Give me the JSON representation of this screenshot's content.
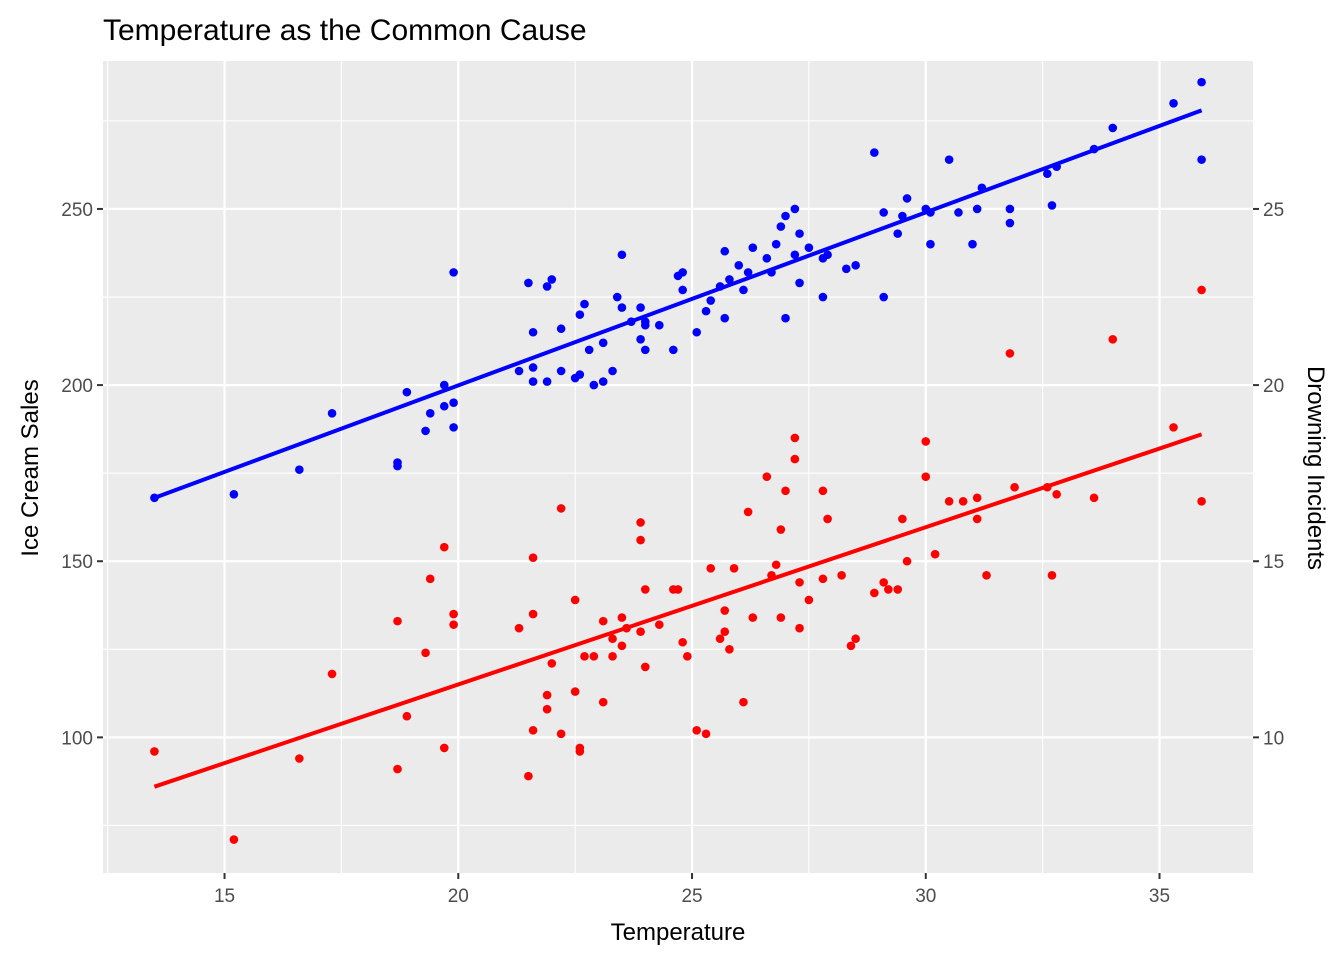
{
  "chart_data": {
    "type": "scatter",
    "title": "Temperature as the Common Cause",
    "xlabel": "Temperature",
    "ylabel": "Ice Cream Sales",
    "y2label": "Drowning Incidents",
    "xlim": [
      12.4,
      37.0
    ],
    "ylim": [
      61.5,
      292
    ],
    "y2lim": [
      6.15,
      29.2
    ],
    "xticks": [
      15,
      20,
      25,
      30,
      35
    ],
    "yticks": [
      100,
      150,
      200,
      250
    ],
    "y2ticks": [
      10,
      15,
      20,
      25
    ],
    "grid": true,
    "panel_background": "#ebebeb",
    "series": [
      {
        "name": "Ice Cream Sales",
        "axis": "left",
        "color": "#0000ff",
        "trend": {
          "x": [
            13.5,
            35.9
          ],
          "y": [
            168,
            278
          ]
        },
        "points": [
          [
            13.5,
            168
          ],
          [
            15.2,
            169
          ],
          [
            16.6,
            176
          ],
          [
            17.3,
            192
          ],
          [
            18.7,
            177
          ],
          [
            18.7,
            178
          ],
          [
            18.9,
            198
          ],
          [
            19.3,
            187
          ],
          [
            19.4,
            192
          ],
          [
            19.7,
            194
          ],
          [
            19.7,
            200
          ],
          [
            19.9,
            188
          ],
          [
            19.9,
            195
          ],
          [
            19.9,
            232
          ],
          [
            21.3,
            204
          ],
          [
            21.5,
            229
          ],
          [
            21.6,
            215
          ],
          [
            21.6,
            205
          ],
          [
            21.6,
            201
          ],
          [
            21.9,
            201
          ],
          [
            21.9,
            228
          ],
          [
            22.0,
            230
          ],
          [
            22.2,
            204
          ],
          [
            22.2,
            216
          ],
          [
            22.5,
            202
          ],
          [
            22.6,
            203
          ],
          [
            22.6,
            220
          ],
          [
            22.7,
            223
          ],
          [
            22.8,
            210
          ],
          [
            22.9,
            200
          ],
          [
            23.1,
            201
          ],
          [
            23.1,
            212
          ],
          [
            23.3,
            204
          ],
          [
            23.4,
            225
          ],
          [
            23.5,
            237
          ],
          [
            23.5,
            222
          ],
          [
            23.7,
            218
          ],
          [
            23.9,
            213
          ],
          [
            23.9,
            222
          ],
          [
            24.0,
            218
          ],
          [
            24.0,
            210
          ],
          [
            24.0,
            217
          ],
          [
            24.3,
            217
          ],
          [
            24.6,
            210
          ],
          [
            24.7,
            231
          ],
          [
            24.8,
            232
          ],
          [
            24.8,
            227
          ],
          [
            25.1,
            215
          ],
          [
            25.3,
            221
          ],
          [
            25.4,
            224
          ],
          [
            25.6,
            228
          ],
          [
            25.7,
            238
          ],
          [
            25.7,
            219
          ],
          [
            25.8,
            230
          ],
          [
            26.0,
            234
          ],
          [
            26.1,
            227
          ],
          [
            26.2,
            232
          ],
          [
            26.3,
            239
          ],
          [
            26.6,
            236
          ],
          [
            26.7,
            232
          ],
          [
            26.8,
            240
          ],
          [
            26.9,
            245
          ],
          [
            27.0,
            219
          ],
          [
            27.0,
            248
          ],
          [
            27.2,
            250
          ],
          [
            27.2,
            237
          ],
          [
            27.3,
            243
          ],
          [
            27.3,
            229
          ],
          [
            27.5,
            239
          ],
          [
            27.8,
            236
          ],
          [
            27.8,
            225
          ],
          [
            27.9,
            237
          ],
          [
            28.3,
            233
          ],
          [
            28.5,
            234
          ],
          [
            28.9,
            266
          ],
          [
            29.1,
            225
          ],
          [
            29.1,
            249
          ],
          [
            29.4,
            243
          ],
          [
            29.5,
            248
          ],
          [
            29.6,
            253
          ],
          [
            30.0,
            250
          ],
          [
            30.1,
            249
          ],
          [
            30.1,
            240
          ],
          [
            30.5,
            264
          ],
          [
            30.7,
            249
          ],
          [
            31.0,
            240
          ],
          [
            31.1,
            250
          ],
          [
            31.2,
            256
          ],
          [
            31.8,
            246
          ],
          [
            31.8,
            250
          ],
          [
            32.6,
            260
          ],
          [
            32.7,
            251
          ],
          [
            32.8,
            262
          ],
          [
            33.6,
            267
          ],
          [
            34.0,
            273
          ],
          [
            35.3,
            280
          ],
          [
            35.9,
            264
          ],
          [
            35.9,
            286
          ]
        ]
      },
      {
        "name": "Drowning Incidents",
        "axis": "right",
        "color": "#ff0000",
        "trend": {
          "x": [
            13.5,
            35.9
          ],
          "y": [
            8.6,
            18.6
          ]
        },
        "points": [
          [
            13.5,
            9.6
          ],
          [
            15.2,
            7.1
          ],
          [
            16.6,
            9.4
          ],
          [
            17.3,
            11.8
          ],
          [
            18.7,
            13.3
          ],
          [
            18.7,
            9.1
          ],
          [
            18.9,
            10.6
          ],
          [
            19.3,
            12.4
          ],
          [
            19.4,
            14.5
          ],
          [
            19.7,
            15.4
          ],
          [
            19.7,
            9.7
          ],
          [
            19.9,
            13.2
          ],
          [
            19.9,
            13.5
          ],
          [
            21.3,
            13.1
          ],
          [
            21.5,
            8.9
          ],
          [
            21.6,
            10.2
          ],
          [
            21.6,
            13.5
          ],
          [
            21.6,
            15.1
          ],
          [
            21.9,
            10.8
          ],
          [
            21.9,
            11.2
          ],
          [
            22.0,
            12.1
          ],
          [
            22.2,
            16.5
          ],
          [
            22.2,
            10.1
          ],
          [
            22.5,
            11.3
          ],
          [
            22.5,
            13.9
          ],
          [
            22.6,
            9.7
          ],
          [
            22.6,
            9.6
          ],
          [
            22.7,
            12.3
          ],
          [
            22.9,
            12.3
          ],
          [
            23.1,
            13.3
          ],
          [
            23.1,
            11.0
          ],
          [
            23.3,
            12.8
          ],
          [
            23.3,
            12.3
          ],
          [
            23.5,
            13.4
          ],
          [
            23.5,
            12.6
          ],
          [
            23.6,
            13.1
          ],
          [
            23.9,
            13.0
          ],
          [
            23.9,
            15.6
          ],
          [
            23.9,
            16.1
          ],
          [
            24.0,
            12.0
          ],
          [
            24.0,
            14.2
          ],
          [
            24.3,
            13.2
          ],
          [
            24.6,
            14.2
          ],
          [
            24.7,
            14.2
          ],
          [
            24.8,
            12.7
          ],
          [
            24.9,
            12.3
          ],
          [
            25.1,
            10.2
          ],
          [
            25.3,
            10.1
          ],
          [
            25.4,
            14.8
          ],
          [
            25.6,
            12.8
          ],
          [
            25.7,
            13.0
          ],
          [
            25.7,
            13.6
          ],
          [
            25.8,
            12.5
          ],
          [
            25.9,
            14.8
          ],
          [
            26.1,
            11.0
          ],
          [
            26.2,
            16.4
          ],
          [
            26.3,
            13.4
          ],
          [
            26.6,
            17.4
          ],
          [
            26.7,
            14.6
          ],
          [
            26.8,
            14.9
          ],
          [
            26.9,
            13.4
          ],
          [
            26.9,
            15.9
          ],
          [
            27.0,
            17.0
          ],
          [
            27.2,
            18.5
          ],
          [
            27.2,
            17.9
          ],
          [
            27.3,
            14.4
          ],
          [
            27.3,
            13.1
          ],
          [
            27.5,
            13.9
          ],
          [
            27.8,
            17.0
          ],
          [
            27.8,
            14.5
          ],
          [
            27.9,
            16.2
          ],
          [
            28.2,
            14.6
          ],
          [
            28.4,
            12.6
          ],
          [
            28.5,
            12.8
          ],
          [
            28.9,
            14.1
          ],
          [
            29.1,
            14.4
          ],
          [
            29.2,
            14.2
          ],
          [
            29.4,
            14.2
          ],
          [
            29.5,
            16.2
          ],
          [
            29.6,
            15.0
          ],
          [
            30.0,
            18.4
          ],
          [
            30.0,
            17.4
          ],
          [
            30.2,
            15.2
          ],
          [
            30.5,
            16.7
          ],
          [
            30.8,
            16.7
          ],
          [
            31.1,
            16.2
          ],
          [
            31.1,
            16.8
          ],
          [
            31.3,
            14.6
          ],
          [
            31.8,
            20.9
          ],
          [
            31.9,
            17.1
          ],
          [
            32.6,
            17.1
          ],
          [
            32.7,
            14.6
          ],
          [
            32.8,
            16.9
          ],
          [
            33.6,
            16.8
          ],
          [
            34.0,
            21.3
          ],
          [
            35.3,
            18.8
          ],
          [
            35.9,
            16.7
          ],
          [
            35.9,
            22.7
          ]
        ]
      }
    ]
  }
}
